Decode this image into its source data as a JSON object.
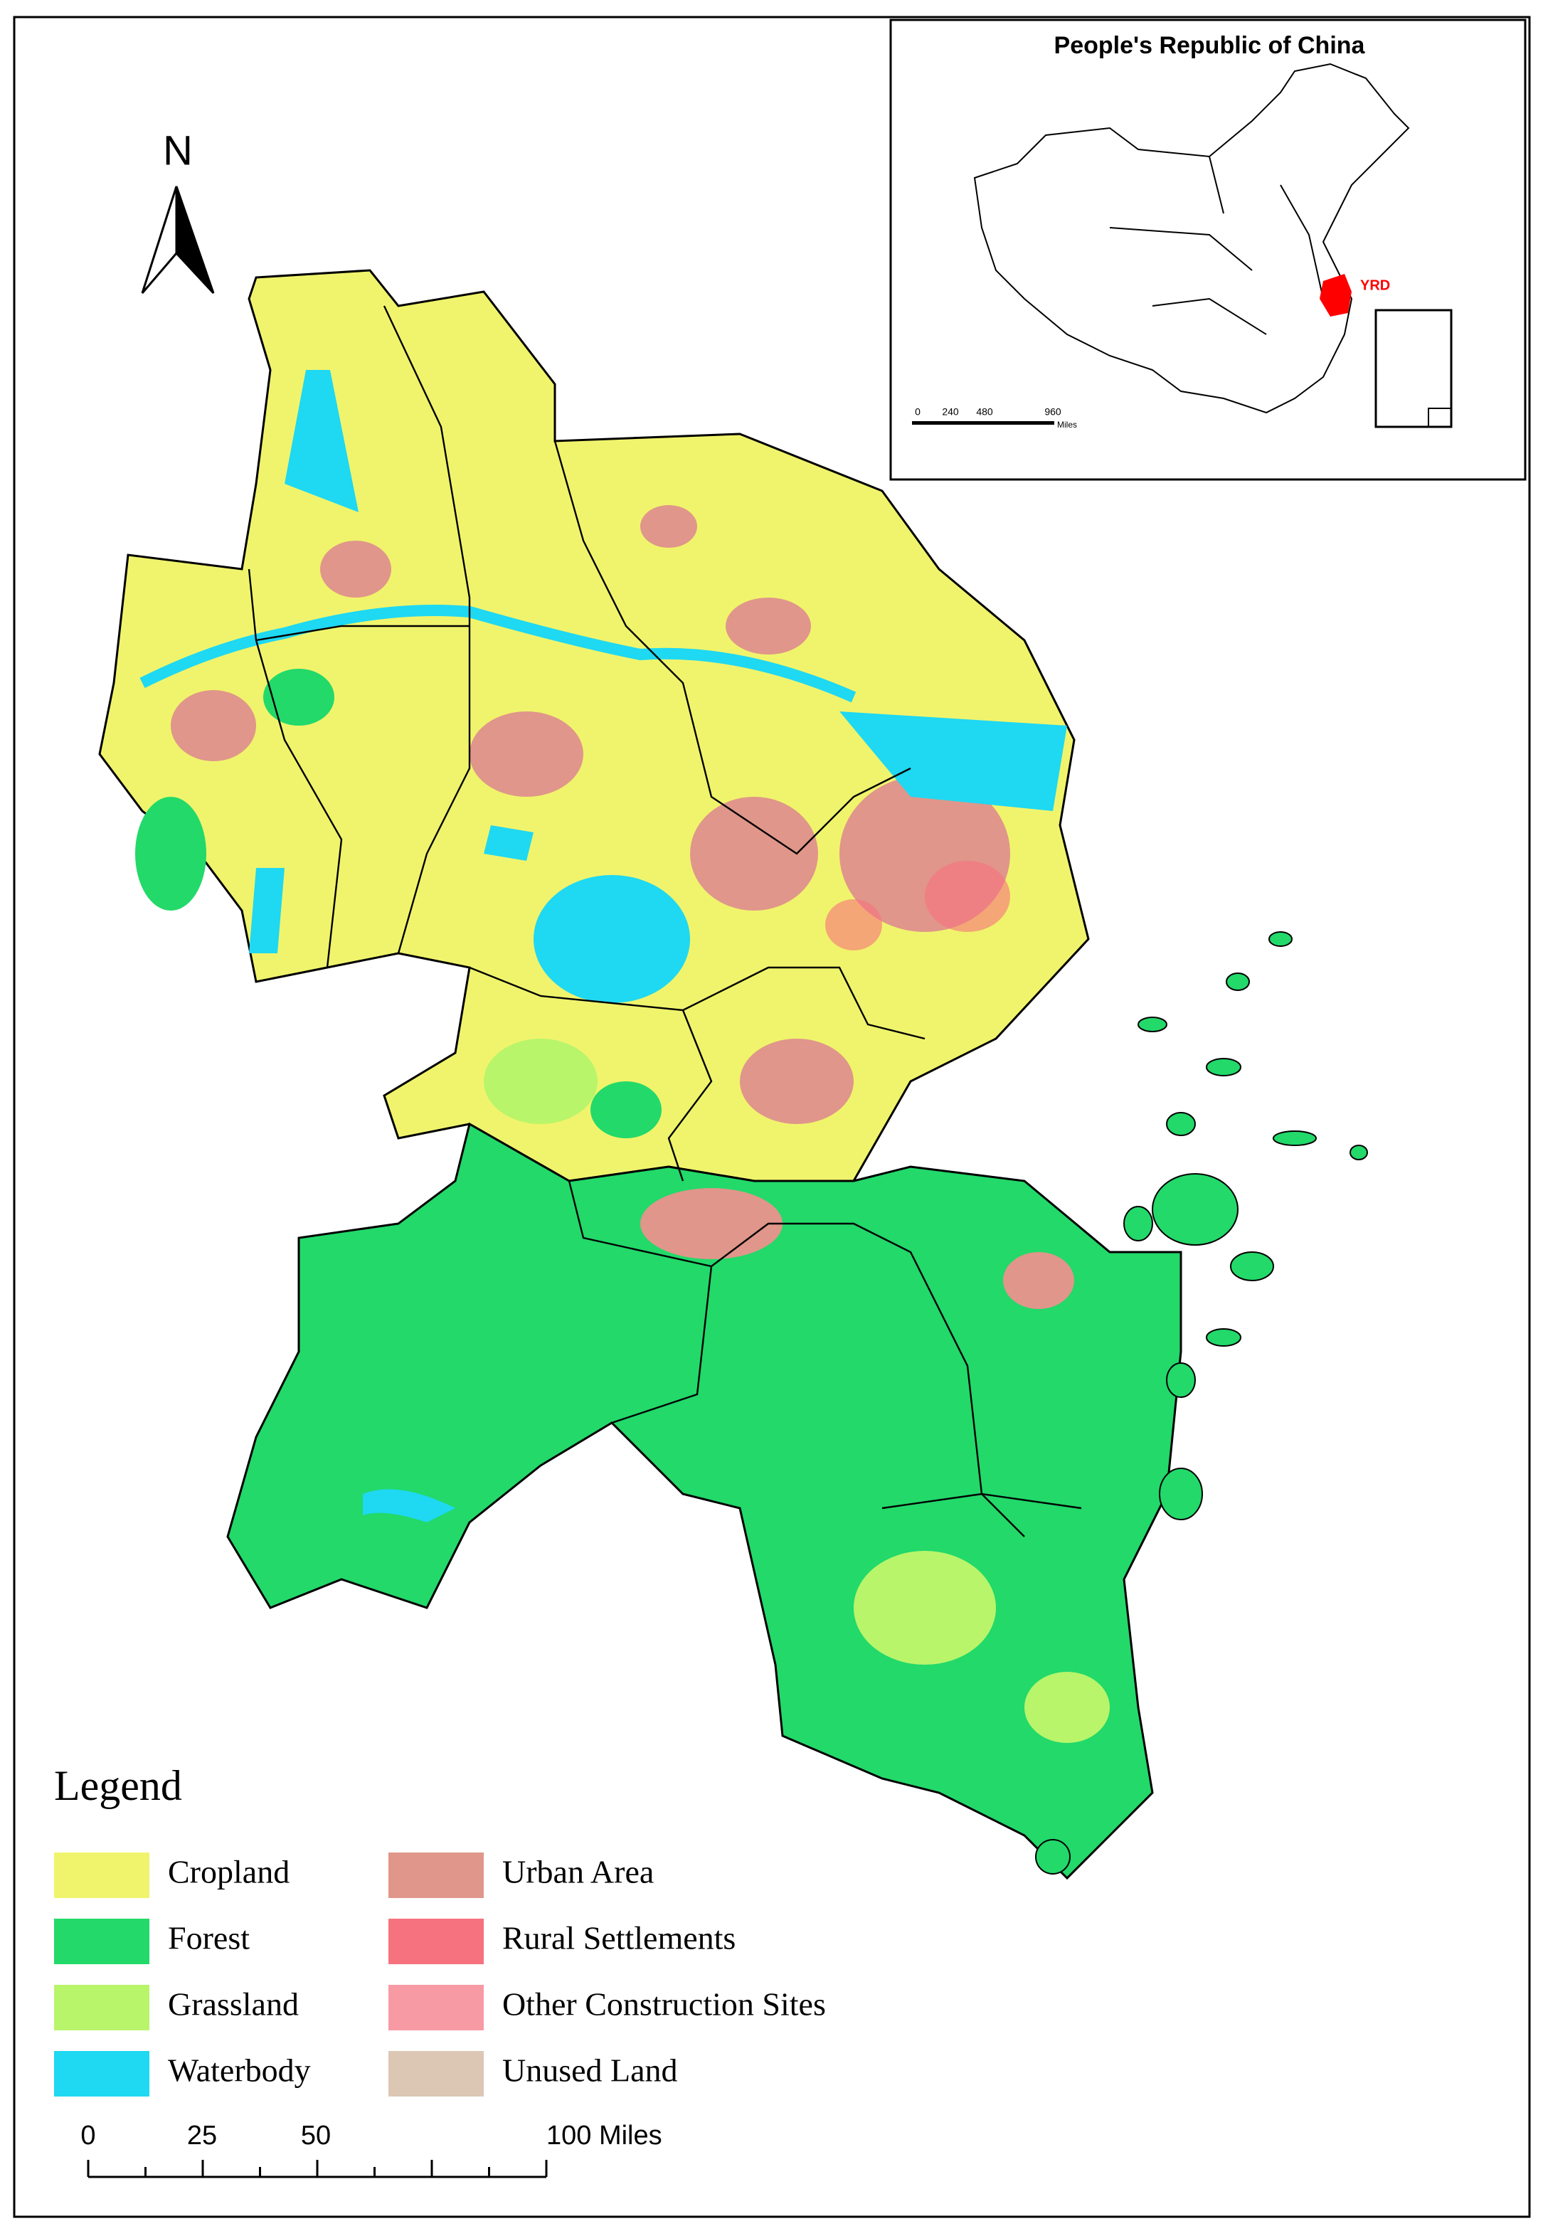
{
  "north_label": "N",
  "inset": {
    "title": "People's Republic of China",
    "region_label": "YRD",
    "scale_labels": [
      "0",
      "240",
      "480",
      "960"
    ],
    "scale_unit": "Miles"
  },
  "legend": {
    "title": "Legend",
    "items": [
      {
        "label": "Cropland",
        "color": "#f0f46c"
      },
      {
        "label": "Forest",
        "color": "#22d96a"
      },
      {
        "label": "Grassland",
        "color": "#b8f56a"
      },
      {
        "label": "Waterbody",
        "color": "#1fd8f2"
      },
      {
        "label": "Urban Area",
        "color": "#e0968a"
      },
      {
        "label": "Rural Settlements",
        "color": "#f6727e"
      },
      {
        "label": "Other Construction Sites",
        "color": "#f79aa4"
      },
      {
        "label": "Unused Land",
        "color": "#dcc7b5"
      }
    ]
  },
  "scale_bar": {
    "labels": [
      "0",
      "25",
      "50",
      "100 Miles"
    ]
  }
}
